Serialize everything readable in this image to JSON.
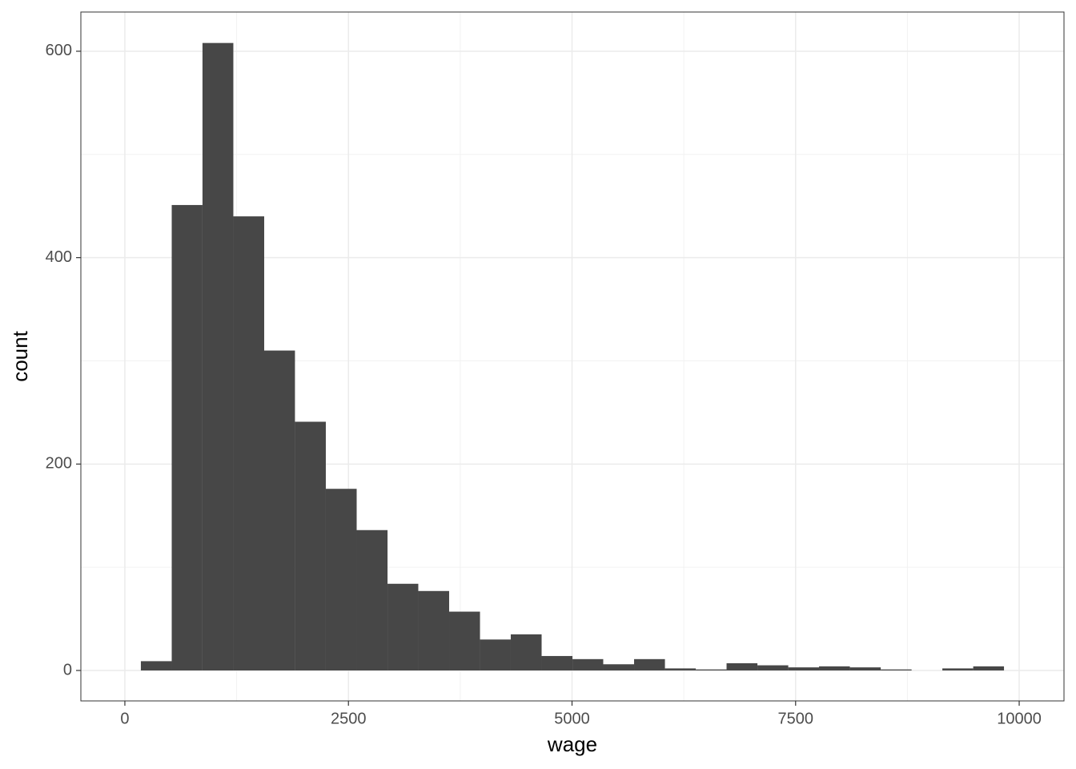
{
  "chart_data": {
    "type": "histogram",
    "x_label": "wage",
    "y_label": "count",
    "bins": [
      179,
      524,
      868,
      1213,
      1558,
      1902,
      2247,
      2592,
      2937,
      3281,
      3626,
      3971,
      4315,
      4660,
      5005,
      5349,
      5694,
      6039,
      6384,
      6728,
      7073,
      7418,
      7762,
      8107,
      8452,
      8797,
      9141,
      9486,
      9830
    ],
    "counts": [
      9,
      451,
      608,
      440,
      310,
      241,
      176,
      136,
      84,
      77,
      57,
      30,
      35,
      14,
      11,
      6,
      11,
      2,
      1,
      7,
      5,
      3,
      4,
      3,
      1,
      0,
      2,
      4
    ],
    "color": "#474747",
    "xlim": [
      -492,
      10501
    ],
    "ylim": [
      -29.5,
      638
    ],
    "xticks": [
      0,
      2500,
      5000,
      7500,
      10000
    ],
    "yticks": [
      0,
      200,
      400,
      600
    ],
    "grid": true
  }
}
